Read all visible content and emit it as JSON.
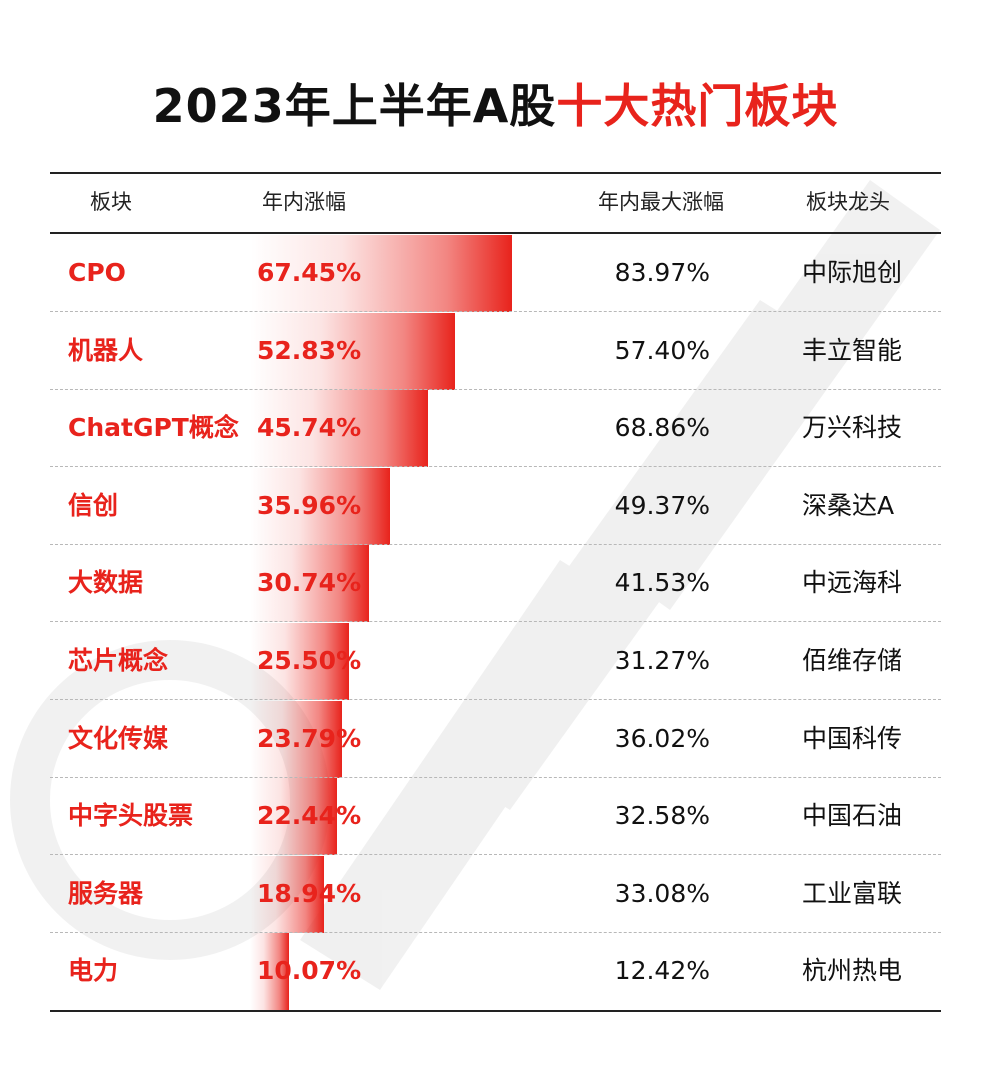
{
  "title": {
    "main": "2023年上半年A股",
    "highlight": "十大热门板块"
  },
  "colors": {
    "accent": "#e8231c",
    "text": "#111111"
  },
  "table": {
    "headers": {
      "sector": "板块",
      "ytd": "年内涨幅",
      "max": "年内最大涨幅",
      "leader": "板块龙头"
    },
    "rows": [
      {
        "sector": "CPO",
        "ytd": "67.45%",
        "max": "83.97%",
        "leader": "中际旭创"
      },
      {
        "sector": "机器人",
        "ytd": "52.83%",
        "max": "57.40%",
        "leader": "丰立智能"
      },
      {
        "sector": "ChatGPT概念",
        "ytd": "45.74%",
        "max": "68.86%",
        "leader": "万兴科技"
      },
      {
        "sector": "信创",
        "ytd": "35.96%",
        "max": "49.37%",
        "leader": "深桑达A"
      },
      {
        "sector": "大数据",
        "ytd": "30.74%",
        "max": "41.53%",
        "leader": "中远海科"
      },
      {
        "sector": "芯片概念",
        "ytd": "25.50%",
        "max": "31.27%",
        "leader": "佰维存储"
      },
      {
        "sector": "文化传媒",
        "ytd": "23.79%",
        "max": "36.02%",
        "leader": "中国科传"
      },
      {
        "sector": "中字头股票",
        "ytd": "22.44%",
        "max": "32.58%",
        "leader": "中国石油"
      },
      {
        "sector": "服务器",
        "ytd": "18.94%",
        "max": "33.08%",
        "leader": "工业富联"
      },
      {
        "sector": "电力",
        "ytd": "10.07%",
        "max": "12.42%",
        "leader": "杭州热电"
      }
    ]
  },
  "chart_data": {
    "type": "bar",
    "categories": [
      "CPO",
      "机器人",
      "ChatGPT概念",
      "信创",
      "大数据",
      "芯片概念",
      "文化传媒",
      "中字头股票",
      "服务器",
      "电力"
    ],
    "series": [
      {
        "name": "年内涨幅",
        "values": [
          67.45,
          52.83,
          45.74,
          35.96,
          30.74,
          25.5,
          23.79,
          22.44,
          18.94,
          10.07
        ]
      }
    ],
    "extra_columns": {
      "年内最大涨幅": [
        83.97,
        57.4,
        68.86,
        49.37,
        41.53,
        31.27,
        36.02,
        32.58,
        33.08,
        12.42
      ],
      "板块龙头": [
        "中际旭创",
        "丰立智能",
        "万兴科技",
        "深桑达A",
        "中远海科",
        "佰维存储",
        "中国科传",
        "中国石油",
        "工业富联",
        "杭州热电"
      ]
    },
    "orientation": "horizontal",
    "unit": "%",
    "bar_color": "#e8231c"
  }
}
